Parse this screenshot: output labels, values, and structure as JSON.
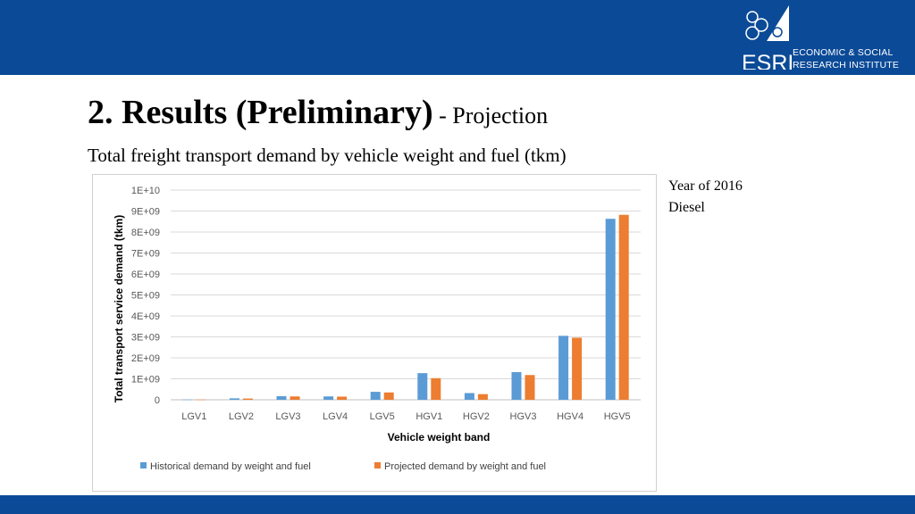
{
  "header": {
    "logo_abbr": "ESRI",
    "logo_line1": "ECONOMIC & SOCIAL",
    "logo_line2": "RESEARCH INSTITUTE"
  },
  "slide": {
    "title_main": "2. Results (Preliminary)",
    "title_sub": " - Projection",
    "subtitle": "Total freight transport demand by vehicle weight and fuel (tkm)",
    "note_line1": "Year of 2016",
    "note_line2": "Diesel"
  },
  "colors": {
    "header_blue": "#0b4a97",
    "series_historical": "#5b9bd5",
    "series_projected": "#ed7d31"
  },
  "chart_data": {
    "type": "bar",
    "categories": [
      "LGV1",
      "LGV2",
      "LGV3",
      "LGV4",
      "LGV5",
      "HGV1",
      "HGV2",
      "HGV3",
      "HGV4",
      "HGV5"
    ],
    "series": [
      {
        "name": "Historical demand by weight and fuel",
        "values": [
          10000000,
          70000000,
          170000000,
          160000000,
          380000000,
          1270000000,
          320000000,
          1320000000,
          3050000000,
          8630000000
        ]
      },
      {
        "name": "Projected demand by weight and fuel",
        "values": [
          10000000,
          60000000,
          160000000,
          150000000,
          350000000,
          1030000000,
          270000000,
          1180000000,
          2960000000,
          8820000000
        ]
      }
    ],
    "xlabel": "Vehicle weight band",
    "ylabel": "Total transport service demand (tkm)",
    "yticks": [
      "0",
      "1E+09",
      "2E+09",
      "3E+09",
      "4E+09",
      "5E+09",
      "6E+09",
      "7E+09",
      "8E+09",
      "9E+09",
      "1E+10"
    ],
    "ylim": [
      0,
      10000000000
    ],
    "grid": true,
    "legend": "bottom"
  }
}
